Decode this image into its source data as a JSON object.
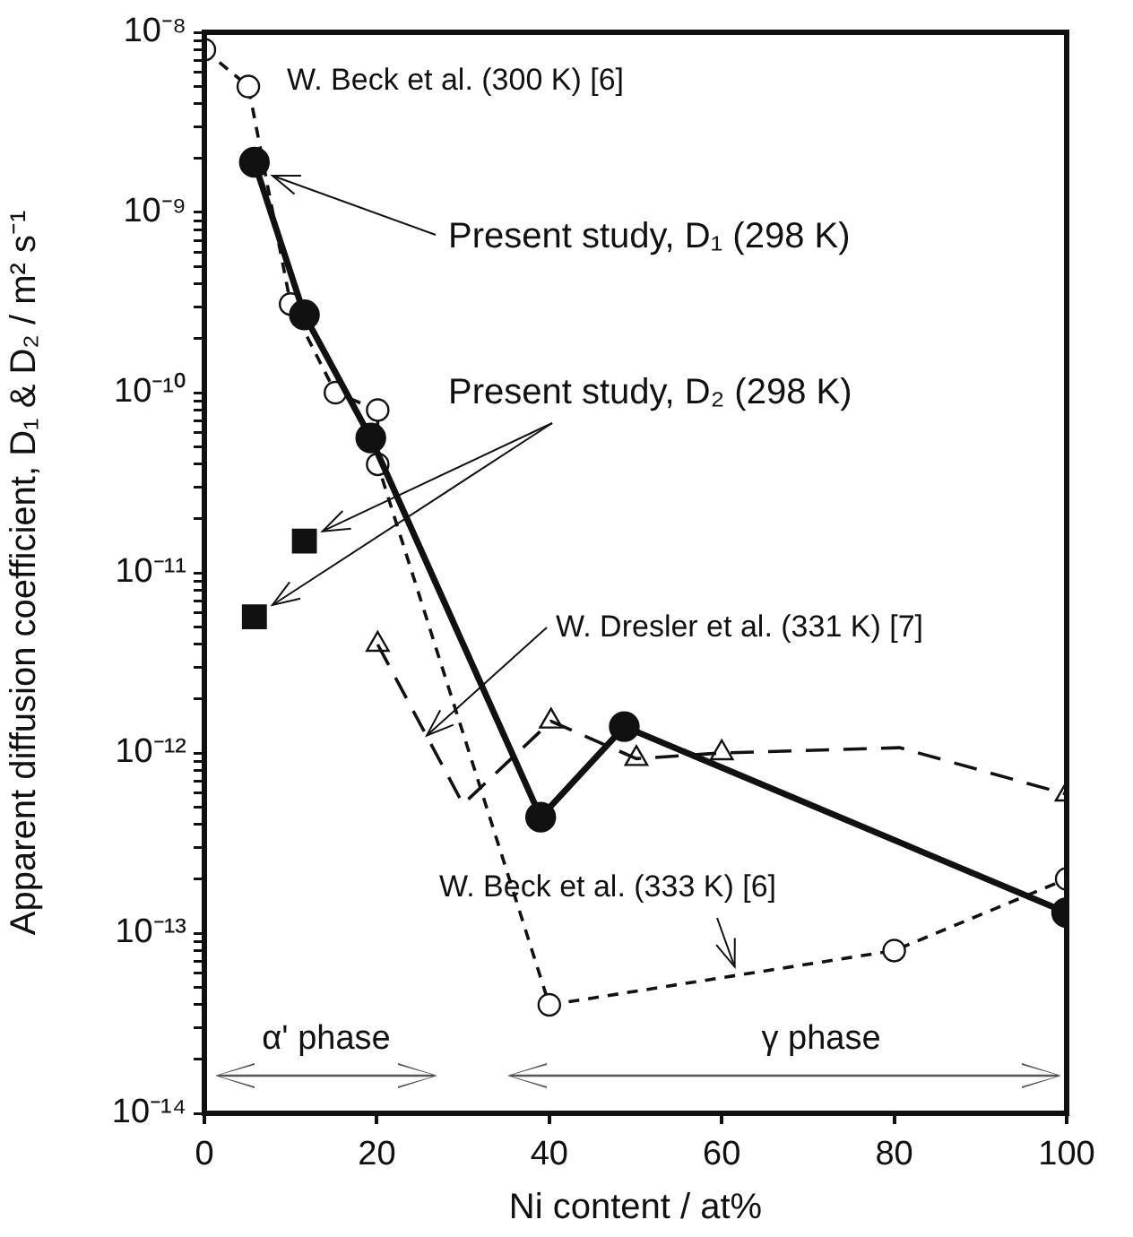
{
  "chart_data": {
    "type": "line",
    "xlabel": "Ni content / at%",
    "ylabel": "Apparent diffusion coefficient, D₁ & D₂ / m² s⁻¹",
    "log": "y",
    "grid": false,
    "legend": false,
    "xlim": [
      0,
      100
    ],
    "xticks": [
      0,
      20,
      40,
      60,
      80,
      100
    ],
    "ylim": [
      1e-14,
      1e-08
    ],
    "yticks": [
      {
        "value": 1e-14,
        "label": "10⁻¹⁴"
      },
      {
        "value": 2e-14,
        "label": null
      },
      {
        "value": 3e-14,
        "label": null
      },
      {
        "value": 4e-14,
        "label": null
      },
      {
        "value": 5e-14,
        "label": null
      },
      {
        "value": 6e-14,
        "label": null
      },
      {
        "value": 7e-14,
        "label": null
      },
      {
        "value": 8e-14,
        "label": null
      },
      {
        "value": 9e-14,
        "label": null
      },
      {
        "value": 1e-13,
        "label": "10⁻¹³"
      },
      {
        "value": 2e-13,
        "label": null
      },
      {
        "value": 3e-13,
        "label": null
      },
      {
        "value": 4e-13,
        "label": null
      },
      {
        "value": 5e-13,
        "label": null
      },
      {
        "value": 6e-13,
        "label": null
      },
      {
        "value": 7e-13,
        "label": null
      },
      {
        "value": 8e-13,
        "label": null
      },
      {
        "value": 9e-13,
        "label": null
      },
      {
        "value": 1e-12,
        "label": "10⁻¹²"
      },
      {
        "value": 2e-12,
        "label": null
      },
      {
        "value": 3e-12,
        "label": null
      },
      {
        "value": 4e-12,
        "label": null
      },
      {
        "value": 5e-12,
        "label": null
      },
      {
        "value": 6e-12,
        "label": null
      },
      {
        "value": 7e-12,
        "label": null
      },
      {
        "value": 8e-12,
        "label": null
      },
      {
        "value": 9e-12,
        "label": null
      },
      {
        "value": 1e-11,
        "label": "10⁻¹¹"
      },
      {
        "value": 2e-11,
        "label": null
      },
      {
        "value": 3e-11,
        "label": null
      },
      {
        "value": 4e-11,
        "label": null
      },
      {
        "value": 5e-11,
        "label": null
      },
      {
        "value": 6e-11,
        "label": null
      },
      {
        "value": 7e-11,
        "label": null
      },
      {
        "value": 8e-11,
        "label": null
      },
      {
        "value": 9e-11,
        "label": null
      },
      {
        "value": 1e-10,
        "label": "10⁻¹⁰"
      },
      {
        "value": 2e-10,
        "label": null
      },
      {
        "value": 3e-10,
        "label": null
      },
      {
        "value": 4e-10,
        "label": null
      },
      {
        "value": 5e-10,
        "label": null
      },
      {
        "value": 6e-10,
        "label": null
      },
      {
        "value": 7e-10,
        "label": null
      },
      {
        "value": 8e-10,
        "label": null
      },
      {
        "value": 9e-10,
        "label": null
      },
      {
        "value": 1e-09,
        "label": "10⁻⁹"
      },
      {
        "value": 2e-09,
        "label": null
      },
      {
        "value": 3e-09,
        "label": null
      },
      {
        "value": 4e-09,
        "label": null
      },
      {
        "value": 5e-09,
        "label": null
      },
      {
        "value": 6e-09,
        "label": null
      },
      {
        "value": 7e-09,
        "label": null
      },
      {
        "value": 8e-09,
        "label": null
      },
      {
        "value": 9e-09,
        "label": null
      },
      {
        "value": 1e-08,
        "label": "10⁻⁸"
      }
    ],
    "series": [
      {
        "type": "line",
        "color": "#111111",
        "marker": "circle",
        "line_style": "solid",
        "x": [
          5.8,
          11.6,
          19.3,
          39,
          48.7,
          100
        ],
        "values": [
          1.9e-09,
          2.7e-10,
          5.6e-11,
          4.4e-13,
          1.4e-12,
          1.3e-13
        ]
      },
      {
        "type": "scatter",
        "color": "#111111",
        "marker": "square",
        "x": [
          11.6,
          5.8
        ],
        "values": [
          1.5e-11,
          5.7e-12
        ]
      },
      {
        "type": "line",
        "color": "#111111",
        "marker": "circle",
        "line_style": "dashed",
        "x": [
          0,
          5.1,
          10,
          15.2,
          20.1,
          20.1,
          40,
          80,
          100
        ],
        "values": [
          8e-09,
          5e-09,
          3.1e-10,
          1e-10,
          8e-11,
          4e-11,
          4e-14,
          8e-14,
          2e-13
        ]
      },
      {
        "type": "line",
        "color": "#111111",
        "marker": "none",
        "line_style": "dashed",
        "x": [
          20.1,
          30,
          40.2,
          50.1,
          60,
          80.6,
          100
        ],
        "values": [
          4e-12,
          5.2e-13,
          1.5e-12,
          9.3e-13,
          1e-12,
          1.07e-12,
          5.9e-13
        ]
      },
      {
        "type": "scatter",
        "color": "#111111",
        "marker": "triangle",
        "x": [
          20.1,
          40.2,
          50.1,
          60,
          100
        ],
        "values": [
          4e-12,
          1.5e-12,
          9.3e-13,
          1e-12,
          5.9e-13
        ]
      }
    ],
    "annotations": [
      "W. Beck et al. (300 K) [6]",
      {
        "text": "Present study, D₁ (298 K)",
        "x": 7.9,
        "y": 1.6e-09
      },
      {
        "text": "Present study, D₂ (298 K)",
        "x": 13.7,
        "y": 1.7e-11
      },
      {
        "text": "W. Dresler et al. (331 K) [7]",
        "x": 25.8,
        "y": 1.25e-12
      },
      {
        "text": "W. Beck et al. (333 K) [6]",
        "x": 61.5,
        "y": 6.5e-14
      },
      "α' phase",
      "γ phase"
    ]
  }
}
